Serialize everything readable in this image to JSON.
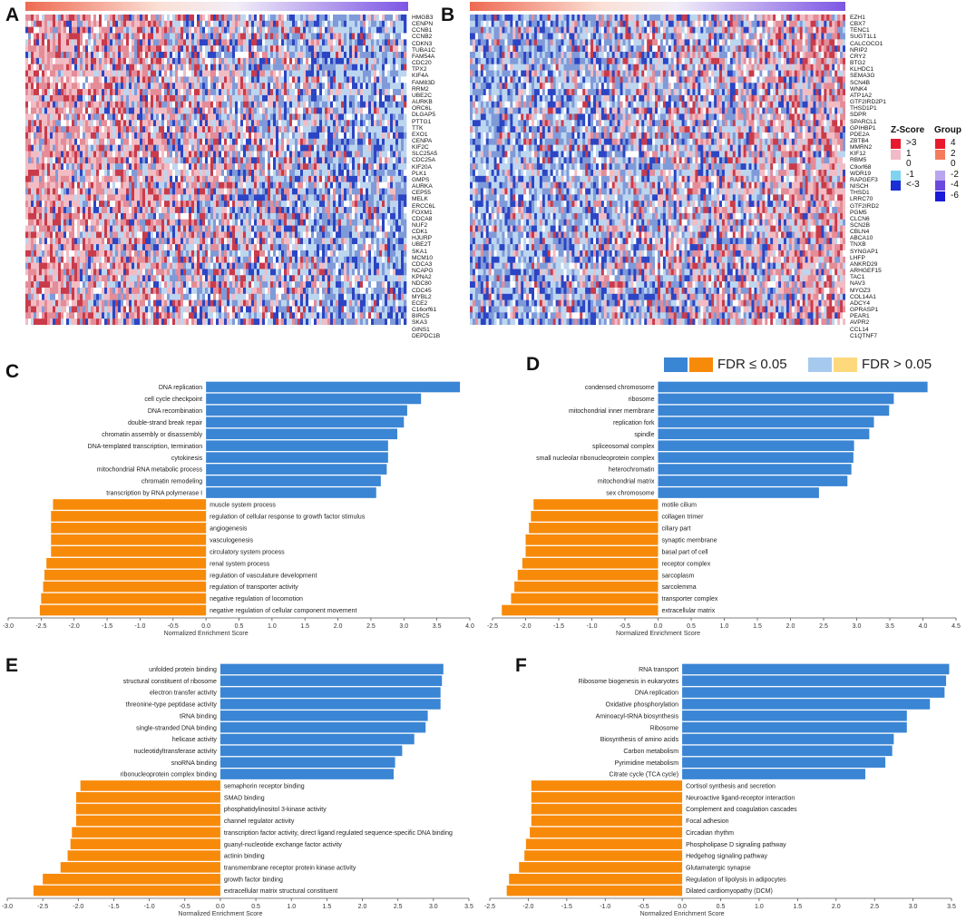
{
  "panel_letters": {
    "A": "A",
    "B": "B",
    "C": "C",
    "D": "D",
    "E": "E",
    "F": "F"
  },
  "colors": {
    "up": "#3a85d4",
    "down": "#f88a0a",
    "up_ns": "#a6c9ee",
    "down_ns": "#fdd97c",
    "heat_high": "#d94452",
    "heat_low": "#2f4fc8"
  },
  "heatmap_A": {
    "genes": [
      "HMGB3",
      "CENPN",
      "CCNB1",
      "CCNB2",
      "CDKN3",
      "TUBA1C",
      "FAM54A",
      "CDC20",
      "TPX2",
      "KIF4A",
      "FAM83D",
      "RRM2",
      "UBE2C",
      "AURKB",
      "ORC6L",
      "DLGAP5",
      "PTTG1",
      "TTK",
      "EXO1",
      "CENPA",
      "KIF2C",
      "SLC25A5",
      "CDC25A",
      "KIF20A",
      "PLK1",
      "GMPS",
      "AURKA",
      "CEP55",
      "MELK",
      "ERCC6L",
      "FOXM1",
      "CDCA8",
      "NUF2",
      "CDK1",
      "HJURP",
      "UBE2T",
      "SKA1",
      "MCM10",
      "CDCA3",
      "NCAPG",
      "KPNA2",
      "NDC80",
      "CDC45",
      "MYBL2",
      "ECE2",
      "C16orf61",
      "BIRC5",
      "SKA3",
      "GINS1",
      "DEPDC1B"
    ]
  },
  "heatmap_B": {
    "genes": [
      "EZH1",
      "CBX7",
      "TENC1",
      "SUGT1L1",
      "CALCOCO1",
      "NRIP2",
      "CRY2",
      "BTG2",
      "KLHDC1",
      "SEMA3G",
      "SCN4B",
      "WNK4",
      "ATP1A2",
      "GTF2IRD2P1",
      "THSD1P1",
      "SDPR",
      "SPARCL1",
      "GPIHBP1",
      "PDE2A",
      "ZBTB4",
      "MMRN2",
      "KIF12",
      "RBM5",
      "C9orf68",
      "WDR19",
      "RAPGEF3",
      "NISCH",
      "THSD1",
      "LRRC70",
      "GTF2IRD2",
      "PGM5",
      "CLCN6",
      "SCN2B",
      "CBLN4",
      "ABCA10",
      "TNXB",
      "SYNGAP1",
      "LHFP",
      "ANKRD29",
      "ARHGEF15",
      "TAC1",
      "NAV3",
      "MYOZ3",
      "COL14A1",
      "ADCY4",
      "GPRASP1",
      "PEAR1",
      "AVPR2",
      "CCL14",
      "C1QTNF7"
    ]
  },
  "legend": {
    "zscore_title": "Z-Score",
    "zscore_items": [
      {
        "label": ">3",
        "color": "#e8192c"
      },
      {
        "label": "1",
        "color": "#f2bac8"
      },
      {
        "label": "0",
        "color": "#ffffff"
      },
      {
        "label": "-1",
        "color": "#7fd3ef"
      },
      {
        "label": "<-3",
        "color": "#1a2fd4"
      }
    ],
    "group_title": "Group",
    "group_items": [
      {
        "label": "4",
        "color": "#e8192c"
      },
      {
        "label": "2",
        "color": "#f47c5c"
      },
      {
        "label": "0",
        "color": "#ffffff"
      },
      {
        "label": "-2",
        "color": "#b9a4ee"
      },
      {
        "label": "-4",
        "color": "#6b49e0"
      },
      {
        "label": "-6",
        "color": "#1a1ad8"
      }
    ]
  },
  "fdr_legend": {
    "sig": "FDR ≤ 0.05",
    "ns": "FDR > 0.05"
  },
  "chart_data": [
    {
      "panel": "C",
      "type": "bar",
      "orientation": "horizontal",
      "xlabel": "Normalized Enrichment Score",
      "xlim": [
        -3.0,
        4.0
      ],
      "ticks": [
        "-3.0",
        "-2.5",
        "-2.0",
        "-1.5",
        "-1.0",
        "-0.5",
        "0.0",
        "0.5",
        "1.0",
        "1.5",
        "2.0",
        "2.5",
        "3.0",
        "3.5",
        "4.0"
      ],
      "categories": [
        "DNA replication",
        "cell cycle checkpoint",
        "DNA recombination",
        "double-strand break repair",
        "chromatin assembly or disassembly",
        "DNA-templated transcription, termination",
        "cytokinesis",
        "mitochondrial RNA metabolic process",
        "chromatin remodeling",
        "transcription by RNA polymerase I",
        "muscle system process",
        "regulation of cellular response to growth factor stimulus",
        "angiogenesis",
        "vasculogenesis",
        "circulatory system process",
        "renal system process",
        "regulation of vasculature development",
        "regulation of transporter activity",
        "negative regulation of locomotion",
        "negative regulation of cellular component movement"
      ],
      "values": [
        3.85,
        3.26,
        3.05,
        3.0,
        2.9,
        2.76,
        2.76,
        2.74,
        2.65,
        2.58,
        -2.32,
        -2.35,
        -2.35,
        -2.35,
        -2.35,
        -2.42,
        -2.45,
        -2.47,
        -2.5,
        -2.52
      ]
    },
    {
      "panel": "D",
      "type": "bar",
      "orientation": "horizontal",
      "xlabel": "Normalized Enrichment Score",
      "xlim": [
        -2.5,
        4.5
      ],
      "ticks": [
        "-2.5",
        "-2.0",
        "-1.5",
        "-1.0",
        "-0.5",
        "0.0",
        "0.5",
        "1.0",
        "1.5",
        "2.0",
        "2.5",
        "3.0",
        "3.5",
        "4.0",
        "4.5"
      ],
      "categories": [
        "condensed chromosome",
        "ribosome",
        "mitochondrial inner membrane",
        "replication fork",
        "spindle",
        "spliceosomal complex",
        "small nucleolar ribonucleoprotein complex",
        "heterochromatin",
        "mitochondrial matrix",
        "sex chromosome",
        "motile cilium",
        "collagen trimer",
        "ciliary part",
        "synaptic membrane",
        "basal part of cell",
        "receptor complex",
        "sarcoplasm",
        "sarcolemma",
        "transporter complex",
        "extracellular matrix"
      ],
      "values": [
        4.07,
        3.56,
        3.49,
        3.26,
        3.19,
        2.96,
        2.95,
        2.92,
        2.86,
        2.43,
        -1.88,
        -1.92,
        -1.95,
        -2.0,
        -2.0,
        -2.05,
        -2.12,
        -2.17,
        -2.22,
        -2.36
      ]
    },
    {
      "panel": "E",
      "type": "bar",
      "orientation": "horizontal",
      "xlabel": "Normalized Enrichment Score",
      "xlim": [
        -3.0,
        3.5
      ],
      "ticks": [
        "-3.0",
        "-2.5",
        "-2.0",
        "-1.5",
        "-1.0",
        "-0.5",
        "0.0",
        "0.5",
        "1.0",
        "1.5",
        "2.0",
        "2.5",
        "3.0",
        "3.5"
      ],
      "categories": [
        "unfolded protein binding",
        "structural constituent of ribosome",
        "electron transfer activity",
        "threonine-type peptidase activity",
        "tRNA binding",
        "single-stranded DNA binding",
        "helicase activity",
        "nucleotidyltransferase activity",
        "snoRNA binding",
        "ribonucleoprotein complex binding",
        "semaphorin receptor binding",
        "SMAD binding",
        "phosphatidylinositol 3-kinase activity",
        "channel regulator activity",
        "transcription factor activity, direct ligand regulated sequence-specific DNA binding",
        "guanyl-nucleotide exchange factor activity",
        "actinin binding",
        "transmembrane receptor protein kinase activity",
        "growth factor binding",
        "extracellular matrix structural constituent"
      ],
      "values": [
        3.14,
        3.12,
        3.1,
        3.1,
        2.92,
        2.89,
        2.73,
        2.56,
        2.46,
        2.44,
        -1.97,
        -2.03,
        -2.03,
        -2.03,
        -2.09,
        -2.11,
        -2.15,
        -2.25,
        -2.5,
        -2.63
      ]
    },
    {
      "panel": "F",
      "type": "bar",
      "orientation": "horizontal",
      "xlabel": "Normalized Enrichment Score",
      "xlim": [
        -2.5,
        3.5
      ],
      "ticks": [
        "-2.5",
        "-2.0",
        "-1.5",
        "-1.0",
        "-0.5",
        "0.0",
        "0.5",
        "1.0",
        "1.5",
        "2.0",
        "2.5",
        "3.0",
        "3.5"
      ],
      "categories": [
        "RNA transport",
        "Ribosome biogenesis in eukaryotes",
        "DNA replication",
        "Oxidative phosphorylation",
        "Aminoacyl-tRNA biosynthesis",
        "Ribosome",
        "Biosynthesis of amino acids",
        "Carbon metabolism",
        "Pyrimidine metabolism",
        "Citrate cycle (TCA cycle)",
        "Cortisol synthesis and secretion",
        "Neuroactive ligand-receptor interaction",
        "Complement and coagulation cascades",
        "Focal adhesion",
        "Circadian rhythm",
        "Phospholipase D signaling pathway",
        "Hedgehog signaling pathway",
        "Glutamatergic synapse",
        "Regulation of lipolysis in adipocytes",
        "Dilated cardiomyopathy (DCM)"
      ],
      "values": [
        3.47,
        3.43,
        3.41,
        3.22,
        2.92,
        2.92,
        2.75,
        2.73,
        2.64,
        2.38,
        -1.96,
        -1.96,
        -1.96,
        -1.96,
        -1.98,
        -2.03,
        -2.05,
        -2.12,
        -2.25,
        -2.28
      ]
    }
  ]
}
